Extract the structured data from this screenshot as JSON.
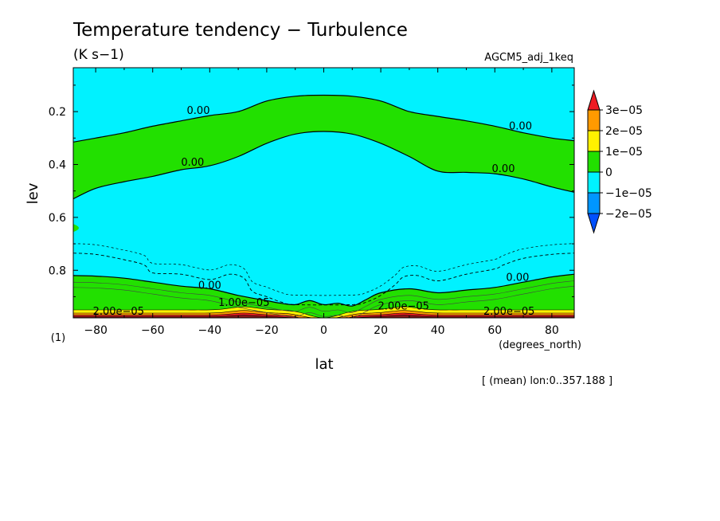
{
  "chart_data": {
    "type": "contour",
    "title": "Temperature tendency − Turbulence",
    "units": "(K s−1)",
    "source": "AGCM5_adj_1keq",
    "xlabel": "lat",
    "xunits": "(degrees_north)",
    "ylabel": "lev",
    "ylabel_unit": "(1)",
    "footnote": "[ (mean) lon:0..357.188 ]",
    "xlim": [
      -87.86,
      87.86
    ],
    "ylim": [
      0.98,
      0.034
    ],
    "y_reversed": true,
    "x_ticks": [
      "−80",
      "−60",
      "−40",
      "−20",
      "0",
      "20",
      "40",
      "60",
      "80"
    ],
    "x_tick_values": [
      -80,
      -60,
      -40,
      -20,
      0,
      20,
      40,
      60,
      80
    ],
    "y_ticks": [
      "0.2",
      "0.4",
      "0.6",
      "0.8"
    ],
    "y_tick_values": [
      0.2,
      0.4,
      0.6,
      0.8
    ],
    "colorbar": {
      "labels": [
        "3e−05",
        "2e−05",
        "1e−05",
        "0",
        "−1e−05",
        "−2e−05"
      ],
      "levels": [
        3e-05,
        2e-05,
        1e-05,
        0,
        -1e-05,
        -2e-05
      ],
      "colors": {
        "above_3e-05": "#ee1c24",
        "2e-05_to_3e-05": "#ff9a00",
        "1e-05_to_2e-05": "#fff200",
        "0_to_1e-05": "#22e000",
        "-1e-05_to_0": "#00f2ff",
        "-2e-05_to_-1e-05": "#0096ff",
        "below_-2e-05": "#0050ff"
      }
    },
    "background_color": "#00f2ff",
    "contour_labels": [
      {
        "text": "0.00",
        "lat": -44,
        "lev": 0.208
      },
      {
        "text": "0.00",
        "lat": -46,
        "lev": 0.405
      },
      {
        "text": "0.00",
        "lat": 69,
        "lev": 0.267
      },
      {
        "text": "0.00",
        "lat": 63,
        "lev": 0.428
      },
      {
        "text": "0.00",
        "lat": -40,
        "lev": 0.87
      },
      {
        "text": "0.00",
        "lat": 68,
        "lev": 0.84
      },
      {
        "text": "1.00e−05",
        "lat": -28,
        "lev": 0.935
      },
      {
        "text": "2.00e−05",
        "lat": 28,
        "lev": 0.948
      },
      {
        "text": "2.00e−05",
        "lat": -72,
        "lev": 0.968
      },
      {
        "text": "2.00e−05",
        "lat": 65,
        "lev": 0.968
      }
    ],
    "zero_contour_upper": {
      "lat": [
        -87.86,
        -80,
        -70,
        -60,
        -50,
        -40,
        -30,
        -20,
        -10,
        0,
        10,
        20,
        30,
        40,
        50,
        60,
        70,
        80,
        87.86
      ],
      "lev": [
        0.315,
        0.3,
        0.28,
        0.255,
        0.235,
        0.215,
        0.2,
        0.16,
        0.142,
        0.138,
        0.142,
        0.16,
        0.2,
        0.218,
        0.235,
        0.255,
        0.28,
        0.3,
        0.31
      ]
    },
    "zero_contour_lower": {
      "lat": [
        -87.86,
        -80,
        -70,
        -60,
        -50,
        -40,
        -30,
        -20,
        -10,
        0,
        10,
        20,
        30,
        40,
        50,
        60,
        70,
        80,
        87.86
      ],
      "lev": [
        0.53,
        0.49,
        0.465,
        0.445,
        0.42,
        0.405,
        0.37,
        0.32,
        0.285,
        0.275,
        0.285,
        0.32,
        0.37,
        0.425,
        0.43,
        0.435,
        0.455,
        0.485,
        0.505
      ]
    },
    "zero_contour_boundary_layer": {
      "lat": [
        -87.86,
        -80,
        -70,
        -60,
        -50,
        -40,
        -30,
        -20,
        -15,
        -10,
        -5,
        0,
        5,
        10,
        15,
        20,
        30,
        40,
        50,
        60,
        70,
        80,
        87.86
      ],
      "lev": [
        0.82,
        0.822,
        0.83,
        0.845,
        0.86,
        0.87,
        0.895,
        0.915,
        0.925,
        0.93,
        0.915,
        0.93,
        0.925,
        0.935,
        0.91,
        0.885,
        0.87,
        0.885,
        0.875,
        0.865,
        0.845,
        0.825,
        0.815
      ]
    },
    "neg_dashed_contour": {
      "lat": [
        -87.86,
        -80,
        -70,
        -63,
        -60,
        -50,
        -40,
        -33,
        -28,
        -25,
        -20,
        -15,
        -10,
        10,
        15,
        20,
        25,
        28,
        33,
        40,
        50,
        60,
        63,
        70,
        80,
        87.86
      ],
      "lev": [
        0.735,
        0.74,
        0.76,
        0.78,
        0.81,
        0.815,
        0.835,
        0.815,
        0.83,
        0.88,
        0.9,
        0.92,
        0.93,
        0.93,
        0.92,
        0.895,
        0.855,
        0.825,
        0.82,
        0.84,
        0.815,
        0.795,
        0.78,
        0.755,
        0.74,
        0.735
      ]
    }
  }
}
